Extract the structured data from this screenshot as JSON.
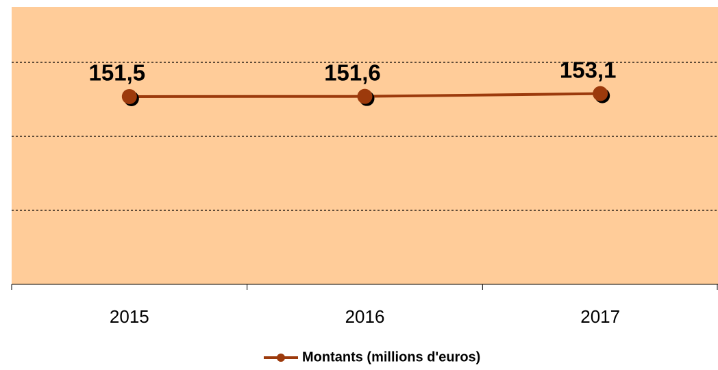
{
  "chart_data": {
    "type": "line",
    "categories": [
      "2015",
      "2016",
      "2017"
    ],
    "series": [
      {
        "name": "Montants (millions d'euros)",
        "color": "#9c3a0c",
        "values": [
          151.5,
          151.6,
          153.1
        ],
        "value_labels": [
          "151,5",
          "151,6",
          "153,1"
        ]
      }
    ],
    "ylim": [
      50,
      200
    ],
    "yticks": [
      90,
      130,
      170
    ],
    "grid": true,
    "legend": "bottom",
    "background": "#ffcc99"
  }
}
